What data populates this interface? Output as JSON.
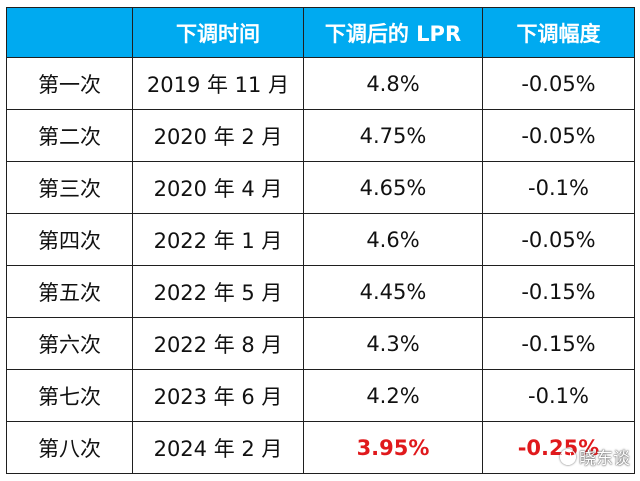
{
  "header": {
    "col0": "",
    "col1": "下调时间",
    "col2": "下调后的 LPR",
    "col3": "下调幅度"
  },
  "rows": [
    {
      "label": "第一次",
      "date": "2019 年 11 月",
      "lpr": "4.8%",
      "cut": "-0.05%"
    },
    {
      "label": "第二次",
      "date": "2020 年 2 月",
      "lpr": "4.75%",
      "cut": "-0.05%"
    },
    {
      "label": "第三次",
      "date": "2020 年 4 月",
      "lpr": "4.65%",
      "cut": "-0.1%"
    },
    {
      "label": "第四次",
      "date": "2022 年 1 月",
      "lpr": "4.6%",
      "cut": "-0.05%"
    },
    {
      "label": "第五次",
      "date": "2022 年 5 月",
      "lpr": "4.45%",
      "cut": "-0.15%"
    },
    {
      "label": "第六次",
      "date": "2022 年 8 月",
      "lpr": "4.3%",
      "cut": "-0.15%"
    },
    {
      "label": "第七次",
      "date": "2023 年 6 月",
      "lpr": "4.2%",
      "cut": "-0.1%"
    },
    {
      "label": "第八次",
      "date": "2024 年 2 月",
      "lpr": "3.95%",
      "cut": "-0.25%"
    }
  ],
  "colors": {
    "header_bg": "#00aaf0",
    "highlight": "#e0191c"
  },
  "watermark": {
    "text": "晓东谈",
    "icon": "watermark-logo-icon"
  }
}
